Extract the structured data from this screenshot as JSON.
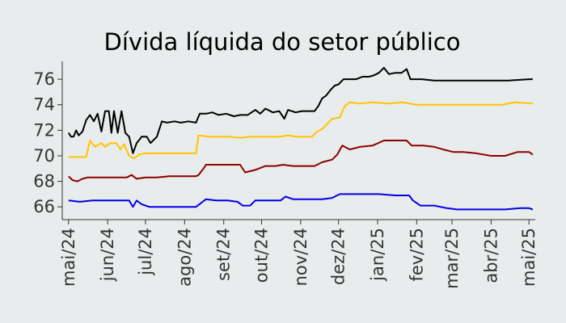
{
  "chart_data": {
    "type": "line",
    "title": "Dívida líquida do setor público",
    "xlabel": "",
    "ylabel": "",
    "ylim": [
      65.0,
      77.4
    ],
    "yticks": [
      66,
      68,
      70,
      72,
      74,
      76
    ],
    "xlim": [
      "2024-04-26",
      "2025-05-06"
    ],
    "x_ticks": [
      {
        "date": "2024-05-01",
        "label": "mai/24"
      },
      {
        "date": "2024-06-01",
        "label": "jun/24"
      },
      {
        "date": "2024-07-01",
        "label": "jul/24"
      },
      {
        "date": "2024-08-01",
        "label": "ago/24"
      },
      {
        "date": "2024-09-01",
        "label": "set/24"
      },
      {
        "date": "2024-10-01",
        "label": "out/24"
      },
      {
        "date": "2024-11-01",
        "label": "nov/24"
      },
      {
        "date": "2024-12-01",
        "label": "dez/24"
      },
      {
        "date": "2025-01-01",
        "label": "jan/25"
      },
      {
        "date": "2025-02-01",
        "label": "fev/25"
      },
      {
        "date": "2025-03-01",
        "label": "mar/25"
      },
      {
        "date": "2025-04-01",
        "label": "abr/25"
      },
      {
        "date": "2025-05-01",
        "label": "mai/25"
      }
    ],
    "grid": false,
    "legend": "none",
    "series": [
      {
        "color": "#000000",
        "points": [
          [
            "2024-05-01",
            71.8
          ],
          [
            "2024-05-03",
            71.5
          ],
          [
            "2024-05-05",
            71.5
          ],
          [
            "2024-05-07",
            72.0
          ],
          [
            "2024-05-09",
            71.6
          ],
          [
            "2024-05-12",
            71.9
          ],
          [
            "2024-05-15",
            72.8
          ],
          [
            "2024-05-18",
            73.2
          ],
          [
            "2024-05-21",
            72.7
          ],
          [
            "2024-05-24",
            73.3
          ],
          [
            "2024-05-27",
            71.9
          ],
          [
            "2024-05-30",
            73.5
          ],
          [
            "2024-06-02",
            73.5
          ],
          [
            "2024-06-04",
            71.8
          ],
          [
            "2024-06-06",
            73.5
          ],
          [
            "2024-06-09",
            71.8
          ],
          [
            "2024-06-12",
            73.5
          ],
          [
            "2024-06-15",
            71.8
          ],
          [
            "2024-06-18",
            71.5
          ],
          [
            "2024-06-21",
            70.2
          ],
          [
            "2024-06-24",
            71.0
          ],
          [
            "2024-06-28",
            71.5
          ],
          [
            "2024-07-02",
            71.5
          ],
          [
            "2024-07-05",
            71.0
          ],
          [
            "2024-07-10",
            71.5
          ],
          [
            "2024-07-14",
            72.7
          ],
          [
            "2024-07-18",
            72.6
          ],
          [
            "2024-07-24",
            72.7
          ],
          [
            "2024-07-29",
            72.6
          ],
          [
            "2024-08-04",
            72.7
          ],
          [
            "2024-08-10",
            72.6
          ],
          [
            "2024-08-13",
            73.3
          ],
          [
            "2024-08-18",
            73.3
          ],
          [
            "2024-08-23",
            73.4
          ],
          [
            "2024-08-28",
            73.2
          ],
          [
            "2024-09-03",
            73.3
          ],
          [
            "2024-09-09",
            73.1
          ],
          [
            "2024-09-14",
            73.2
          ],
          [
            "2024-09-20",
            73.2
          ],
          [
            "2024-09-26",
            73.6
          ],
          [
            "2024-09-30",
            73.3
          ],
          [
            "2024-10-04",
            73.7
          ],
          [
            "2024-10-10",
            73.4
          ],
          [
            "2024-10-15",
            73.5
          ],
          [
            "2024-10-19",
            72.9
          ],
          [
            "2024-10-22",
            73.6
          ],
          [
            "2024-10-28",
            73.4
          ],
          [
            "2024-11-02",
            73.5
          ],
          [
            "2024-11-08",
            73.5
          ],
          [
            "2024-11-12",
            73.5
          ],
          [
            "2024-11-15",
            73.9
          ],
          [
            "2024-11-18",
            74.5
          ],
          [
            "2024-11-21",
            74.7
          ],
          [
            "2024-11-25",
            75.2
          ],
          [
            "2024-11-28",
            75.5
          ],
          [
            "2024-12-01",
            75.6
          ],
          [
            "2024-12-05",
            76.0
          ],
          [
            "2024-12-10",
            76.0
          ],
          [
            "2024-12-15",
            76.0
          ],
          [
            "2024-12-20",
            76.2
          ],
          [
            "2024-12-25",
            76.2
          ],
          [
            "2024-12-29",
            76.3
          ],
          [
            "2025-01-02",
            76.5
          ],
          [
            "2025-01-06",
            76.9
          ],
          [
            "2025-01-10",
            76.4
          ],
          [
            "2025-01-15",
            76.5
          ],
          [
            "2025-01-20",
            76.5
          ],
          [
            "2025-01-24",
            76.8
          ],
          [
            "2025-01-27",
            76.0
          ],
          [
            "2025-02-05",
            76.0
          ],
          [
            "2025-02-15",
            75.9
          ],
          [
            "2025-03-01",
            75.9
          ],
          [
            "2025-03-15",
            75.9
          ],
          [
            "2025-04-01",
            75.9
          ],
          [
            "2025-04-15",
            75.9
          ],
          [
            "2025-05-01",
            76.0
          ],
          [
            "2025-05-04",
            76.0
          ]
        ]
      },
      {
        "color": "#ffc400",
        "points": [
          [
            "2024-05-01",
            69.9
          ],
          [
            "2024-05-10",
            69.9
          ],
          [
            "2024-05-15",
            69.9
          ],
          [
            "2024-05-18",
            71.2
          ],
          [
            "2024-05-22",
            70.7
          ],
          [
            "2024-05-27",
            71.0
          ],
          [
            "2024-05-30",
            70.7
          ],
          [
            "2024-06-03",
            71.0
          ],
          [
            "2024-06-08",
            71.0
          ],
          [
            "2024-06-11",
            70.5
          ],
          [
            "2024-06-14",
            70.9
          ],
          [
            "2024-06-18",
            70.0
          ],
          [
            "2024-06-22",
            69.8
          ],
          [
            "2024-06-26",
            70.1
          ],
          [
            "2024-07-01",
            70.2
          ],
          [
            "2024-07-08",
            70.2
          ],
          [
            "2024-07-15",
            70.2
          ],
          [
            "2024-07-22",
            70.2
          ],
          [
            "2024-07-29",
            70.2
          ],
          [
            "2024-08-06",
            70.2
          ],
          [
            "2024-08-10",
            70.2
          ],
          [
            "2024-08-12",
            71.6
          ],
          [
            "2024-08-20",
            71.5
          ],
          [
            "2024-08-28",
            71.5
          ],
          [
            "2024-09-05",
            71.5
          ],
          [
            "2024-09-14",
            71.4
          ],
          [
            "2024-09-22",
            71.5
          ],
          [
            "2024-09-30",
            71.5
          ],
          [
            "2024-10-08",
            71.5
          ],
          [
            "2024-10-15",
            71.5
          ],
          [
            "2024-10-22",
            71.6
          ],
          [
            "2024-10-29",
            71.5
          ],
          [
            "2024-11-04",
            71.5
          ],
          [
            "2024-11-10",
            71.5
          ],
          [
            "2024-11-14",
            71.9
          ],
          [
            "2024-11-18",
            72.1
          ],
          [
            "2024-11-22",
            72.5
          ],
          [
            "2024-11-26",
            72.9
          ],
          [
            "2024-12-02",
            73.0
          ],
          [
            "2024-12-06",
            73.9
          ],
          [
            "2024-12-10",
            74.2
          ],
          [
            "2024-12-18",
            74.1
          ],
          [
            "2024-12-28",
            74.2
          ],
          [
            "2025-01-10",
            74.1
          ],
          [
            "2025-01-20",
            74.2
          ],
          [
            "2025-02-01",
            74.0
          ],
          [
            "2025-02-15",
            74.0
          ],
          [
            "2025-03-01",
            74.0
          ],
          [
            "2025-03-15",
            74.0
          ],
          [
            "2025-04-01",
            74.0
          ],
          [
            "2025-04-10",
            74.0
          ],
          [
            "2025-04-20",
            74.2
          ],
          [
            "2025-05-04",
            74.1
          ]
        ]
      },
      {
        "color": "#8b0000",
        "points": [
          [
            "2024-05-01",
            68.4
          ],
          [
            "2024-05-04",
            68.1
          ],
          [
            "2024-05-08",
            68.0
          ],
          [
            "2024-05-12",
            68.2
          ],
          [
            "2024-05-16",
            68.3
          ],
          [
            "2024-05-25",
            68.3
          ],
          [
            "2024-06-05",
            68.3
          ],
          [
            "2024-06-16",
            68.3
          ],
          [
            "2024-06-20",
            68.5
          ],
          [
            "2024-06-24",
            68.2
          ],
          [
            "2024-07-01",
            68.3
          ],
          [
            "2024-07-10",
            68.3
          ],
          [
            "2024-07-20",
            68.4
          ],
          [
            "2024-08-01",
            68.4
          ],
          [
            "2024-08-10",
            68.4
          ],
          [
            "2024-08-12",
            68.5
          ],
          [
            "2024-08-16",
            69.0
          ],
          [
            "2024-08-18",
            69.3
          ],
          [
            "2024-08-26",
            69.3
          ],
          [
            "2024-09-04",
            69.3
          ],
          [
            "2024-09-14",
            69.3
          ],
          [
            "2024-09-18",
            68.7
          ],
          [
            "2024-09-26",
            68.9
          ],
          [
            "2024-10-04",
            69.2
          ],
          [
            "2024-10-12",
            69.2
          ],
          [
            "2024-10-18",
            69.3
          ],
          [
            "2024-10-26",
            69.2
          ],
          [
            "2024-11-04",
            69.2
          ],
          [
            "2024-11-12",
            69.2
          ],
          [
            "2024-11-18",
            69.5
          ],
          [
            "2024-11-26",
            69.7
          ],
          [
            "2024-11-30",
            70.1
          ],
          [
            "2024-12-04",
            70.8
          ],
          [
            "2024-12-10",
            70.5
          ],
          [
            "2024-12-18",
            70.7
          ],
          [
            "2024-12-28",
            70.8
          ],
          [
            "2025-01-06",
            71.2
          ],
          [
            "2025-01-16",
            71.2
          ],
          [
            "2025-01-24",
            71.2
          ],
          [
            "2025-01-28",
            70.8
          ],
          [
            "2025-02-06",
            70.8
          ],
          [
            "2025-02-15",
            70.7
          ],
          [
            "2025-02-22",
            70.5
          ],
          [
            "2025-03-02",
            70.3
          ],
          [
            "2025-03-10",
            70.3
          ],
          [
            "2025-03-20",
            70.2
          ],
          [
            "2025-04-01",
            70.0
          ],
          [
            "2025-04-12",
            70.0
          ],
          [
            "2025-04-22",
            70.3
          ],
          [
            "2025-05-01",
            70.3
          ],
          [
            "2025-05-04",
            70.1
          ]
        ]
      },
      {
        "color": "#0000e6",
        "points": [
          [
            "2024-05-01",
            66.5
          ],
          [
            "2024-05-10",
            66.4
          ],
          [
            "2024-05-20",
            66.5
          ],
          [
            "2024-06-01",
            66.5
          ],
          [
            "2024-06-10",
            66.5
          ],
          [
            "2024-06-18",
            66.5
          ],
          [
            "2024-06-21",
            66.0
          ],
          [
            "2024-06-24",
            66.5
          ],
          [
            "2024-06-28",
            66.2
          ],
          [
            "2024-07-04",
            66.0
          ],
          [
            "2024-07-15",
            66.0
          ],
          [
            "2024-08-01",
            66.0
          ],
          [
            "2024-08-10",
            66.0
          ],
          [
            "2024-08-18",
            66.6
          ],
          [
            "2024-08-26",
            66.5
          ],
          [
            "2024-09-04",
            66.5
          ],
          [
            "2024-09-12",
            66.4
          ],
          [
            "2024-09-16",
            66.1
          ],
          [
            "2024-09-22",
            66.1
          ],
          [
            "2024-09-26",
            66.5
          ],
          [
            "2024-10-06",
            66.5
          ],
          [
            "2024-10-16",
            66.5
          ],
          [
            "2024-10-20",
            66.8
          ],
          [
            "2024-10-26",
            66.6
          ],
          [
            "2024-11-06",
            66.6
          ],
          [
            "2024-11-18",
            66.6
          ],
          [
            "2024-11-26",
            66.7
          ],
          [
            "2024-12-02",
            67.0
          ],
          [
            "2024-12-12",
            67.0
          ],
          [
            "2024-12-22",
            67.0
          ],
          [
            "2025-01-02",
            67.0
          ],
          [
            "2025-01-15",
            66.9
          ],
          [
            "2025-01-26",
            66.9
          ],
          [
            "2025-01-29",
            66.5
          ],
          [
            "2025-02-04",
            66.1
          ],
          [
            "2025-02-15",
            66.1
          ],
          [
            "2025-02-25",
            65.9
          ],
          [
            "2025-03-05",
            65.8
          ],
          [
            "2025-03-15",
            65.8
          ],
          [
            "2025-04-01",
            65.8
          ],
          [
            "2025-04-12",
            65.8
          ],
          [
            "2025-04-24",
            65.9
          ],
          [
            "2025-05-01",
            65.9
          ],
          [
            "2025-05-04",
            65.8
          ]
        ]
      }
    ]
  }
}
